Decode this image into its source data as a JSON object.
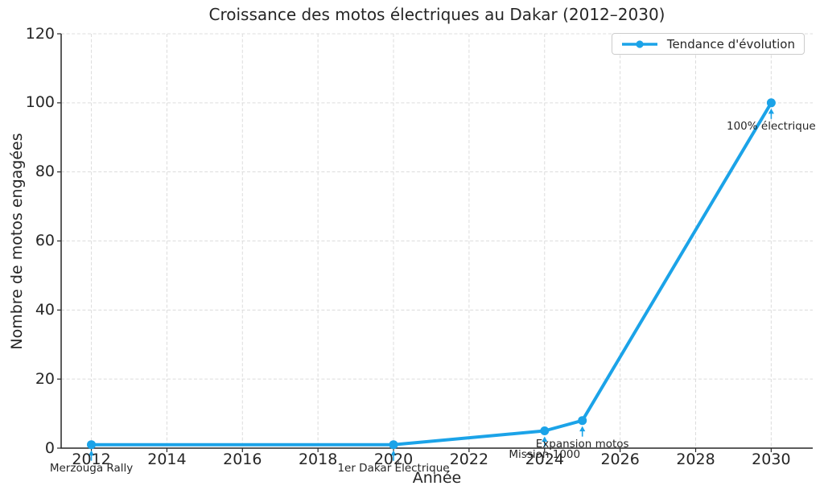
{
  "chart_data": {
    "type": "line",
    "title": "Croissance des motos électriques au Dakar (2012–2030)",
    "xlabel": "Année",
    "ylabel": "Nombre de motos engagées",
    "series": [
      {
        "name": "Tendance d'évolution",
        "color": "#1BA3E8",
        "points": [
          {
            "x": 2012,
            "y": 1
          },
          {
            "x": 2020,
            "y": 1
          },
          {
            "x": 2024,
            "y": 5
          },
          {
            "x": 2025,
            "y": 8
          },
          {
            "x": 2030,
            "y": 100
          }
        ]
      }
    ],
    "annotations": [
      {
        "text": "Merzouga Rally",
        "x": 2012,
        "y": 1
      },
      {
        "text": "1er Dakar Électrique",
        "x": 2020,
        "y": 1
      },
      {
        "text": "Mission 1000",
        "x": 2024,
        "y": 5
      },
      {
        "text": "Expansion motos",
        "x": 2025,
        "y": 8
      },
      {
        "text": "100% électrique",
        "x": 2030,
        "y": 100
      }
    ],
    "x_ticks": [
      2012,
      2014,
      2016,
      2018,
      2020,
      2022,
      2024,
      2026,
      2028,
      2030
    ],
    "y_ticks": [
      0,
      20,
      40,
      60,
      80,
      100,
      120
    ],
    "xlim": [
      2011.2,
      2031.1
    ],
    "ylim": [
      0,
      120
    ],
    "grid": true,
    "grid_style": "dashed",
    "legend_position": "upper right",
    "colors": {
      "line": "#1BA3E8",
      "arrow": "#1BA3E8",
      "grid": "#DCDCDC",
      "axis": "#262626",
      "text": "#262626"
    }
  }
}
